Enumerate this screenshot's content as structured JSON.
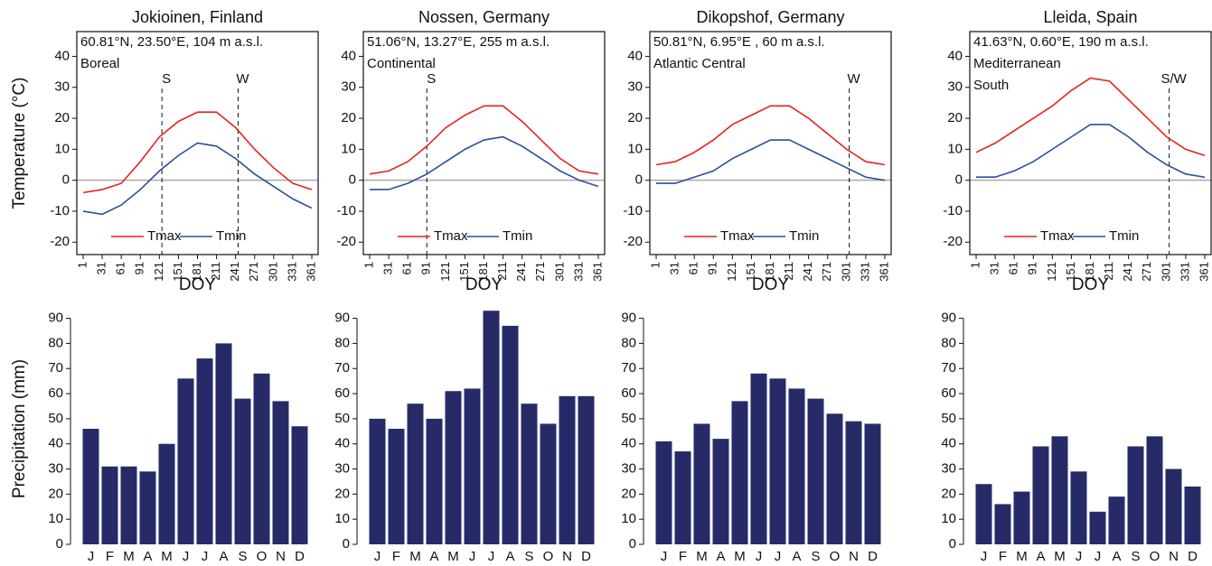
{
  "chart_data": [
    {
      "type": "line",
      "title": "Jokioinen, Finland",
      "annotations": [
        "60.81°N, 23.50°E, 104 m a.s.l.",
        "Boreal"
      ],
      "ylabel": "Temperature (°C)",
      "xlabel": "DOY",
      "x": [
        1,
        31,
        61,
        91,
        121,
        151,
        181,
        211,
        241,
        271,
        301,
        331,
        361
      ],
      "series": [
        {
          "name": "Tmax",
          "color": "#e8211d",
          "values": [
            -4,
            -3,
            -1,
            6,
            14,
            19,
            22,
            22,
            17,
            10,
            4,
            -1,
            -3
          ]
        },
        {
          "name": "Tmin",
          "color": "#2a4f9c",
          "values": [
            -10,
            -11,
            -8,
            -3,
            3,
            8,
            12,
            11,
            7,
            2,
            -2,
            -6,
            -9
          ]
        }
      ],
      "markers": [
        {
          "x": 125,
          "label": "S"
        },
        {
          "x": 245,
          "label": "W"
        }
      ],
      "reference_line": 0,
      "xlim": [
        -9,
        371
      ],
      "xticks": [
        1,
        31,
        61,
        91,
        121,
        151,
        181,
        211,
        241,
        271,
        301,
        331,
        361
      ],
      "ylim": [
        -24,
        48
      ],
      "yticks": [
        -20,
        -10,
        0,
        10,
        20,
        30,
        40
      ]
    },
    {
      "type": "line",
      "title": "Nossen, Germany",
      "annotations": [
        "51.06°N, 13.27°E, 255 m a.s.l.",
        "Continental"
      ],
      "xlabel": "DOY",
      "x": [
        1,
        31,
        61,
        91,
        121,
        151,
        181,
        211,
        241,
        271,
        301,
        331,
        361
      ],
      "series": [
        {
          "name": "Tmax",
          "color": "#e8211d",
          "values": [
            2,
            3,
            6,
            11,
            17,
            21,
            24,
            24,
            19,
            13,
            7,
            3,
            2
          ]
        },
        {
          "name": "Tmin",
          "color": "#2a4f9c",
          "values": [
            -3,
            -3,
            -1,
            2,
            6,
            10,
            13,
            14,
            11,
            7,
            3,
            0,
            -2
          ]
        }
      ],
      "markers": [
        {
          "x": 91,
          "label": "S"
        }
      ],
      "reference_line": 0,
      "xlim": [
        -9,
        371
      ],
      "xticks": [
        1,
        31,
        61,
        91,
        121,
        151,
        181,
        211,
        241,
        271,
        301,
        331,
        361
      ],
      "ylim": [
        -24,
        48
      ],
      "yticks": [
        -20,
        -10,
        0,
        10,
        20,
        30,
        40
      ]
    },
    {
      "type": "line",
      "title": "Dikopshof, Germany",
      "annotations": [
        "50.81°N, 6.95°E , 60 m a.s.l.",
        "Atlantic Central"
      ],
      "xlabel": "DOY",
      "x": [
        1,
        31,
        61,
        91,
        121,
        151,
        181,
        211,
        241,
        271,
        301,
        331,
        361
      ],
      "series": [
        {
          "name": "Tmax",
          "color": "#e8211d",
          "values": [
            5,
            6,
            9,
            13,
            18,
            21,
            24,
            24,
            20,
            15,
            10,
            6,
            5
          ]
        },
        {
          "name": "Tmin",
          "color": "#2a4f9c",
          "values": [
            -1,
            -1,
            1,
            3,
            7,
            10,
            13,
            13,
            10,
            7,
            4,
            1,
            0
          ]
        }
      ],
      "markers": [
        {
          "x": 305,
          "label": "W"
        }
      ],
      "reference_line": 0,
      "xlim": [
        -9,
        371
      ],
      "xticks": [
        1,
        31,
        61,
        91,
        121,
        151,
        181,
        211,
        241,
        271,
        301,
        331,
        361
      ],
      "ylim": [
        -24,
        48
      ],
      "yticks": [
        -20,
        -10,
        0,
        10,
        20,
        30,
        40
      ]
    },
    {
      "type": "line",
      "title": "Lleida, Spain",
      "annotations": [
        "41.63°N, 0.60°E, 190 m a.s.l.",
        "Mediterranean",
        "South"
      ],
      "xlabel": "DOY",
      "x": [
        1,
        31,
        61,
        91,
        121,
        151,
        181,
        211,
        241,
        271,
        301,
        331,
        361
      ],
      "series": [
        {
          "name": "Tmax",
          "color": "#e8211d",
          "values": [
            9,
            12,
            16,
            20,
            24,
            29,
            33,
            32,
            26,
            20,
            14,
            10,
            8
          ]
        },
        {
          "name": "Tmin",
          "color": "#2a4f9c",
          "values": [
            1,
            1,
            3,
            6,
            10,
            14,
            18,
            18,
            14,
            9,
            5,
            2,
            1
          ]
        }
      ],
      "markers": [
        {
          "x": 305,
          "label": "S/W"
        }
      ],
      "reference_line": 0,
      "xlim": [
        -9,
        371
      ],
      "xticks": [
        1,
        31,
        61,
        91,
        121,
        151,
        181,
        211,
        241,
        271,
        301,
        331,
        361
      ],
      "ylim": [
        -24,
        48
      ],
      "yticks": [
        -20,
        -10,
        0,
        10,
        20,
        30,
        40
      ]
    },
    {
      "type": "bar",
      "ylabel": "Precipitation (mm)",
      "categories": [
        "J",
        "F",
        "M",
        "A",
        "M",
        "J",
        "J",
        "A",
        "S",
        "O",
        "N",
        "D"
      ],
      "color": "#262b68",
      "values": [
        46,
        31,
        31,
        29,
        40,
        66,
        74,
        80,
        58,
        68,
        57,
        47
      ],
      "ylim": [
        0,
        92
      ],
      "yticks": [
        0,
        10,
        20,
        30,
        40,
        50,
        60,
        70,
        80,
        90
      ]
    },
    {
      "type": "bar",
      "categories": [
        "J",
        "F",
        "M",
        "A",
        "M",
        "J",
        "J",
        "A",
        "S",
        "O",
        "N",
        "D"
      ],
      "color": "#262b68",
      "values": [
        50,
        46,
        56,
        50,
        61,
        62,
        93,
        87,
        56,
        48,
        59,
        59
      ],
      "ylim": [
        0,
        92
      ],
      "yticks": [
        0,
        10,
        20,
        30,
        40,
        50,
        60,
        70,
        80,
        90
      ]
    },
    {
      "type": "bar",
      "categories": [
        "J",
        "F",
        "M",
        "A",
        "M",
        "J",
        "J",
        "A",
        "S",
        "O",
        "N",
        "D"
      ],
      "color": "#262b68",
      "values": [
        41,
        37,
        48,
        42,
        57,
        68,
        66,
        62,
        58,
        52,
        49,
        48
      ],
      "ylim": [
        0,
        92
      ],
      "yticks": [
        0,
        10,
        20,
        30,
        40,
        50,
        60,
        70,
        80,
        90
      ]
    },
    {
      "type": "bar",
      "categories": [
        "J",
        "F",
        "M",
        "A",
        "M",
        "J",
        "J",
        "A",
        "S",
        "O",
        "N",
        "D"
      ],
      "color": "#262b68",
      "values": [
        24,
        16,
        21,
        39,
        43,
        29,
        13,
        19,
        39,
        43,
        30,
        23
      ],
      "ylim": [
        0,
        92
      ],
      "yticks": [
        0,
        10,
        20,
        30,
        40,
        50,
        60,
        70,
        80,
        90
      ]
    }
  ]
}
